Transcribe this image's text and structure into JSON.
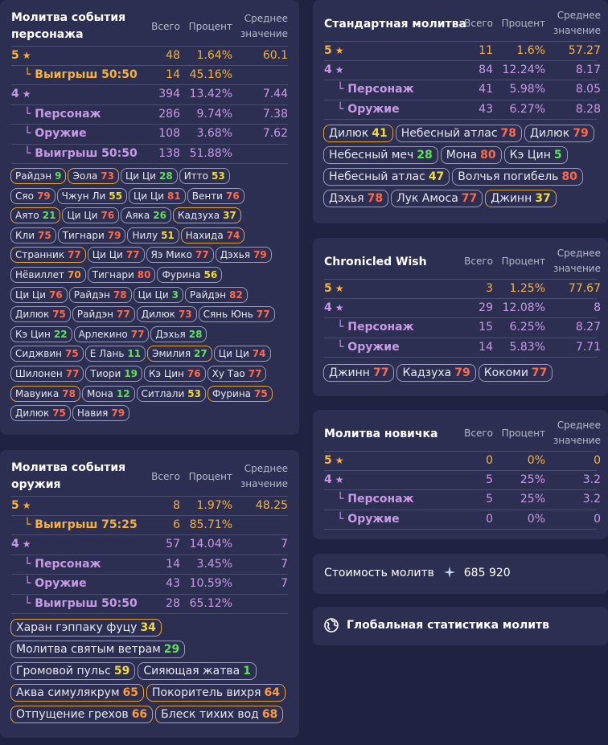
{
  "char": {
    "title": [
      "Молитва события",
      "персонажа"
    ],
    "h_total": "Всего",
    "h_pct": "Процент",
    "h_avg": [
      "Среднее",
      "значение"
    ],
    "rows": [
      {
        "label": "5",
        "star": "★",
        "total": "48",
        "pct": "1.64%",
        "avg": "60.1",
        "kind": "5"
      },
      {
        "label": "└ Выигрыш 50:50",
        "total": "14",
        "pct": "45.16%",
        "avg": "",
        "kind": "5s"
      },
      {
        "label": "4",
        "star": "★",
        "total": "394",
        "pct": "13.42%",
        "avg": "7.44",
        "kind": "4"
      },
      {
        "label": "└ Персонаж",
        "total": "286",
        "pct": "9.74%",
        "avg": "7.38",
        "kind": "4s"
      },
      {
        "label": "└ Оружие",
        "total": "108",
        "pct": "3.68%",
        "avg": "7.62",
        "kind": "4s"
      },
      {
        "label": "└ Выигрыш 50:50",
        "total": "138",
        "pct": "51.88%",
        "avg": "",
        "kind": "4s"
      }
    ],
    "pills": [
      {
        "name": "Райдэн",
        "n": "9",
        "c": "G",
        "g": true
      },
      {
        "name": "Эола",
        "n": "73",
        "c": "R",
        "g": true
      },
      {
        "name": "Ци Ци",
        "n": "28",
        "c": "G",
        "g": false
      },
      {
        "name": "Итто",
        "n": "53",
        "c": "Y",
        "g": false
      },
      {
        "name": "Сяо",
        "n": "79",
        "c": "R",
        "g": false
      },
      {
        "name": "Чжун Ли",
        "n": "55",
        "c": "Y",
        "g": false
      },
      {
        "name": "Ци Ци",
        "n": "81",
        "c": "R",
        "g": false
      },
      {
        "name": "Венти",
        "n": "76",
        "c": "R",
        "g": false
      },
      {
        "name": "Аято",
        "n": "21",
        "c": "G",
        "g": true
      },
      {
        "name": "Ци Ци",
        "n": "76",
        "c": "R",
        "g": false
      },
      {
        "name": "Аяка",
        "n": "26",
        "c": "G",
        "g": false
      },
      {
        "name": "Кадзуха",
        "n": "37",
        "c": "Y",
        "g": true
      },
      {
        "name": "Кли",
        "n": "75",
        "c": "R",
        "g": false
      },
      {
        "name": "Тигнари",
        "n": "79",
        "c": "R",
        "g": false
      },
      {
        "name": "Нилу",
        "n": "51",
        "c": "Y",
        "g": false
      },
      {
        "name": "Нахида",
        "n": "74",
        "c": "R",
        "g": true
      },
      {
        "name": "Странник",
        "n": "77",
        "c": "R",
        "g": true
      },
      {
        "name": "Ци Ци",
        "n": "77",
        "c": "R",
        "g": false
      },
      {
        "name": "Яэ Мико",
        "n": "77",
        "c": "R",
        "g": false
      },
      {
        "name": "Дэхья",
        "n": "79",
        "c": "R",
        "g": false
      },
      {
        "name": "Нёвиллет",
        "n": "70",
        "c": "O",
        "g": false
      },
      {
        "name": "Тигнари",
        "n": "80",
        "c": "R",
        "g": false
      },
      {
        "name": "Фурина",
        "n": "56",
        "c": "Y",
        "g": false
      },
      {
        "name": "Ци Ци",
        "n": "76",
        "c": "R",
        "g": false
      },
      {
        "name": "Райдэн",
        "n": "78",
        "c": "R",
        "g": false
      },
      {
        "name": "Ци Ци",
        "n": "3",
        "c": "G",
        "g": false
      },
      {
        "name": "Райдэн",
        "n": "82",
        "c": "R",
        "g": false
      },
      {
        "name": "Дилюк",
        "n": "75",
        "c": "R",
        "g": false
      },
      {
        "name": "Райдэн",
        "n": "77",
        "c": "R",
        "g": false
      },
      {
        "name": "Дилюк",
        "n": "73",
        "c": "R",
        "g": false
      },
      {
        "name": "Сянь Юнь",
        "n": "77",
        "c": "R",
        "g": false
      },
      {
        "name": "Кэ Цин",
        "n": "22",
        "c": "G",
        "g": false
      },
      {
        "name": "Арлекино",
        "n": "77",
        "c": "R",
        "g": false
      },
      {
        "name": "Дэхья",
        "n": "28",
        "c": "G",
        "g": false
      },
      {
        "name": "Сиджвин",
        "n": "75",
        "c": "R",
        "g": false
      },
      {
        "name": "Е Лань",
        "n": "11",
        "c": "G",
        "g": false
      },
      {
        "name": "Эмилия",
        "n": "27",
        "c": "G",
        "g": true
      },
      {
        "name": "Ци Ци",
        "n": "74",
        "c": "R",
        "g": false
      },
      {
        "name": "Шилонен",
        "n": "77",
        "c": "R",
        "g": false
      },
      {
        "name": "Тиори",
        "n": "19",
        "c": "G",
        "g": false
      },
      {
        "name": "Кэ Цин",
        "n": "76",
        "c": "R",
        "g": false
      },
      {
        "name": "Ху Тао",
        "n": "77",
        "c": "R",
        "g": false
      },
      {
        "name": "Мавуика",
        "n": "78",
        "c": "R",
        "g": true
      },
      {
        "name": "Мона",
        "n": "12",
        "c": "G",
        "g": false
      },
      {
        "name": "Ситлали",
        "n": "53",
        "c": "Y",
        "g": false
      },
      {
        "name": "Фурина",
        "n": "75",
        "c": "R",
        "g": true
      },
      {
        "name": "Дилюк",
        "n": "75",
        "c": "R",
        "g": false
      },
      {
        "name": "Навия",
        "n": "79",
        "c": "R",
        "g": false
      }
    ]
  },
  "weapon": {
    "title": [
      "Молитва события",
      "оружия"
    ],
    "h_total": "Всего",
    "h_pct": "Процент",
    "h_avg": [
      "Среднее",
      "значение"
    ],
    "rows": [
      {
        "label": "5",
        "star": "★",
        "total": "8",
        "pct": "1.97%",
        "avg": "48.25",
        "kind": "5"
      },
      {
        "label": "└ Выигрыш 75:25",
        "total": "6",
        "pct": "85.71%",
        "avg": "",
        "kind": "5s"
      },
      {
        "label": "4",
        "star": "★",
        "total": "57",
        "pct": "14.04%",
        "avg": "7",
        "kind": "4"
      },
      {
        "label": "└ Персонаж",
        "total": "14",
        "pct": "3.45%",
        "avg": "7",
        "kind": "4s"
      },
      {
        "label": "└ Оружие",
        "total": "43",
        "pct": "10.59%",
        "avg": "7",
        "kind": "4s"
      },
      {
        "label": "└ Выигрыш 50:50",
        "total": "28",
        "pct": "65.12%",
        "avg": "",
        "kind": "4s"
      }
    ],
    "pills": [
      {
        "name": "Харан гэппаку фуцу",
        "n": "34",
        "c": "Y",
        "g": true
      },
      {
        "name": "Молитва святым ветрам",
        "n": "29",
        "c": "G",
        "g": false
      },
      {
        "name": "Громовой пульс",
        "n": "59",
        "c": "Y",
        "g": false
      },
      {
        "name": "Сияющая жатва",
        "n": "1",
        "c": "G",
        "g": false
      },
      {
        "name": "Аква симулякрум",
        "n": "65",
        "c": "O",
        "g": true
      },
      {
        "name": "Покоритель вихря",
        "n": "64",
        "c": "O",
        "g": true
      },
      {
        "name": "Отпущение грехов",
        "n": "66",
        "c": "O",
        "g": true
      },
      {
        "name": "Блеск тихих вод",
        "n": "68",
        "c": "O",
        "g": true
      }
    ]
  },
  "standard": {
    "title": "Стандартная молитва",
    "h_total": "Всего",
    "h_pct": "Процент",
    "h_avg": [
      "Среднее",
      "значение"
    ],
    "rows": [
      {
        "label": "5",
        "star": "★",
        "total": "11",
        "pct": "1.6%",
        "avg": "57.27",
        "kind": "5"
      },
      {
        "label": "4",
        "star": "★",
        "total": "84",
        "pct": "12.24%",
        "avg": "8.17",
        "kind": "4"
      },
      {
        "label": "└ Персонаж",
        "total": "41",
        "pct": "5.98%",
        "avg": "8.05",
        "kind": "4s"
      },
      {
        "label": "└ Оружие",
        "total": "43",
        "pct": "6.27%",
        "avg": "8.28",
        "kind": "4s"
      }
    ],
    "pills": [
      {
        "name": "Дилюк",
        "n": "41",
        "c": "Y",
        "g": true
      },
      {
        "name": "Небесный атлас",
        "n": "78",
        "c": "R",
        "g": false
      },
      {
        "name": "Дилюк",
        "n": "79",
        "c": "R",
        "g": false
      },
      {
        "name": "Небесный меч",
        "n": "28",
        "c": "G",
        "g": false
      },
      {
        "name": "Мона",
        "n": "80",
        "c": "R",
        "g": false
      },
      {
        "name": "Кэ Цин",
        "n": "5",
        "c": "G",
        "g": false
      },
      {
        "name": "Небесный атлас",
        "n": "47",
        "c": "Y",
        "g": false
      },
      {
        "name": "Волчья погибель",
        "n": "80",
        "c": "R",
        "g": false
      },
      {
        "name": "Дэхья",
        "n": "78",
        "c": "R",
        "g": false
      },
      {
        "name": "Лук Амоса",
        "n": "77",
        "c": "R",
        "g": false
      },
      {
        "name": "Джинн",
        "n": "37",
        "c": "Y",
        "g": true
      }
    ]
  },
  "chronicled": {
    "title": "Chronicled Wish",
    "h_total": "Всего",
    "h_pct": "Процент",
    "h_avg": [
      "Среднее",
      "значение"
    ],
    "rows": [
      {
        "label": "5",
        "star": "★",
        "total": "3",
        "pct": "1.25%",
        "avg": "77.67",
        "kind": "5"
      },
      {
        "label": "4",
        "star": "★",
        "total": "29",
        "pct": "12.08%",
        "avg": "8",
        "kind": "4"
      },
      {
        "label": "└ Персонаж",
        "total": "15",
        "pct": "6.25%",
        "avg": "8.27",
        "kind": "4s"
      },
      {
        "label": "└ Оружие",
        "total": "14",
        "pct": "5.83%",
        "avg": "7.71",
        "kind": "4s"
      }
    ],
    "pills": [
      {
        "name": "Джинн",
        "n": "77",
        "c": "R",
        "g": false
      },
      {
        "name": "Кадзуха",
        "n": "79",
        "c": "R",
        "g": false
      },
      {
        "name": "Кокоми",
        "n": "77",
        "c": "R",
        "g": false
      }
    ]
  },
  "novice": {
    "title": "Молитва новичка",
    "h_total": "Всего",
    "h_pct": "Процент",
    "h_avg": [
      "Среднее",
      "значение"
    ],
    "rows": [
      {
        "label": "5",
        "star": "★",
        "total": "0",
        "pct": "0%",
        "avg": "0",
        "kind": "5"
      },
      {
        "label": "4",
        "star": "★",
        "total": "5",
        "pct": "25%",
        "avg": "3.2",
        "kind": "4"
      },
      {
        "label": "└ Персонаж",
        "total": "5",
        "pct": "25%",
        "avg": "3.2",
        "kind": "4s"
      },
      {
        "label": "└ Оружие",
        "total": "0",
        "pct": "0%",
        "avg": "0",
        "kind": "4s"
      }
    ]
  },
  "cost": {
    "label": "Стоимость молитв",
    "icon": "primogem-icon",
    "value": "685 920"
  },
  "global": {
    "label": "Глобальная статистика молитв",
    "icon": "globe-icon"
  }
}
